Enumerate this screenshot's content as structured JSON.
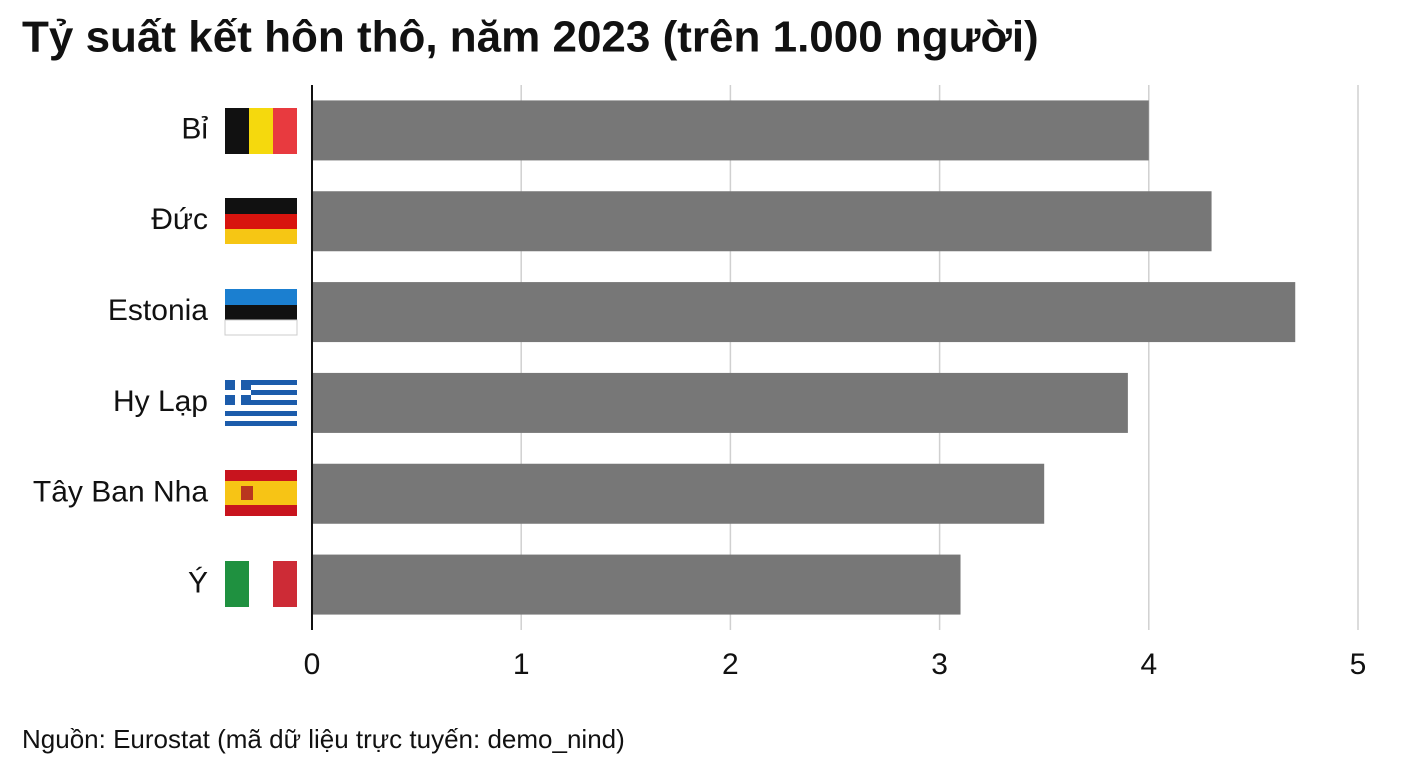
{
  "chart_data": {
    "type": "bar",
    "orientation": "horizontal",
    "title": "Tỷ suất kết hôn thô, năm 2023 (trên 1.000 người)",
    "categories": [
      "Bỉ",
      "Đức",
      "Estonia",
      "Hy Lạp",
      "Tây Ban Nha",
      "Ý"
    ],
    "values": [
      4.0,
      4.3,
      4.7,
      3.9,
      3.5,
      3.1
    ],
    "color": "#777777",
    "xlim": [
      0,
      5
    ],
    "xticks": [
      0,
      1,
      2,
      3,
      4,
      5
    ],
    "grid": true,
    "source": "Nguồn: Eurostat (mã dữ liệu trực tuyến: demo_nind)"
  }
}
